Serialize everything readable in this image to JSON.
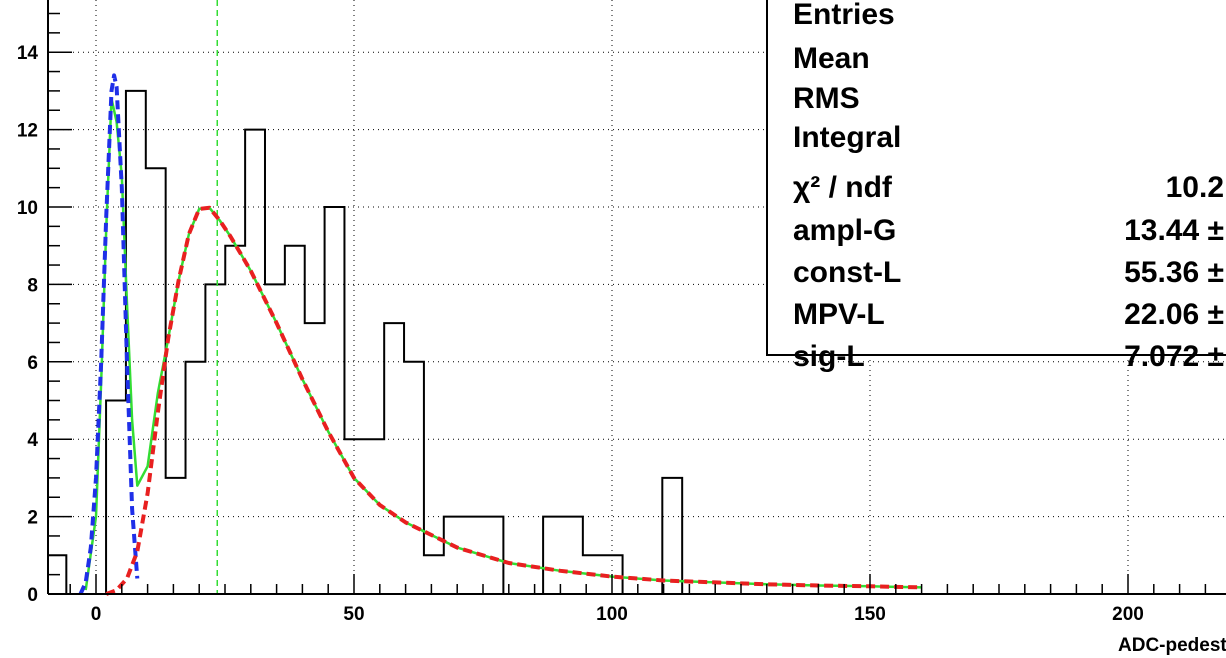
{
  "chart_data": {
    "type": "histogram",
    "title": "",
    "xlabel": "ADC-pedestal",
    "ylabel": "",
    "xlim": [
      -10,
      215
    ],
    "ylim": [
      0,
      15
    ],
    "grid": true,
    "x_ticks": [
      "0",
      "50",
      "100",
      "150",
      "200"
    ],
    "y_ticks": [
      "0",
      "2",
      "4",
      "6",
      "8",
      "10",
      "12",
      "14"
    ],
    "histogram": {
      "bin_width": 3.85,
      "x_start": -9.6,
      "counts": [
        1,
        0,
        0,
        5,
        13,
        11,
        3,
        6,
        8,
        9,
        12,
        8,
        9,
        7,
        10,
        4,
        4,
        7,
        6,
        1,
        2,
        2,
        2,
        0,
        0,
        2,
        2,
        1,
        1,
        0,
        0,
        3,
        0
      ],
      "color": "#000000"
    },
    "curves": [
      {
        "style": "solid",
        "color": "#33dd33",
        "x": [
          -2,
          0,
          1,
          2,
          3,
          4,
          5,
          6,
          7,
          8,
          10,
          12,
          14,
          16,
          18,
          20,
          22,
          24,
          26,
          28,
          30,
          35,
          40,
          45,
          50,
          55,
          60,
          70,
          80,
          90,
          100,
          110,
          120,
          130,
          140,
          150,
          160
        ],
        "y": [
          0.1,
          2.0,
          5.5,
          9.5,
          12.8,
          12.2,
          10.8,
          7.5,
          4.5,
          2.8,
          3.3,
          5.2,
          6.6,
          8.1,
          9.3,
          9.95,
          9.98,
          9.65,
          9.25,
          8.8,
          8.35,
          7.0,
          5.55,
          4.2,
          3.0,
          2.3,
          1.85,
          1.2,
          0.8,
          0.6,
          0.45,
          0.35,
          0.3,
          0.25,
          0.22,
          0.2,
          0.17
        ]
      },
      {
        "style": "dashed",
        "color": "#1f2fe8",
        "x": [
          -3,
          -2,
          -1,
          0,
          1,
          2,
          3,
          3.5,
          4,
          5,
          6,
          7,
          8
        ],
        "y": [
          0,
          0.3,
          1.2,
          3.0,
          6.0,
          9.8,
          13.0,
          13.4,
          13.1,
          10.5,
          6.0,
          2.2,
          0.4
        ]
      },
      {
        "style": "dashed",
        "color": "#e82020",
        "x": [
          2,
          4,
          6,
          8,
          10,
          12,
          14,
          16,
          18,
          20,
          22,
          24,
          26,
          28,
          30,
          35,
          40,
          45,
          50,
          55,
          60,
          70,
          80,
          90,
          100,
          110,
          120,
          130,
          140,
          150,
          160
        ],
        "y": [
          0.0,
          0.1,
          0.4,
          1.1,
          2.6,
          4.7,
          6.6,
          8.1,
          9.3,
          9.95,
          9.98,
          9.65,
          9.25,
          8.8,
          8.35,
          7.0,
          5.55,
          4.2,
          3.0,
          2.3,
          1.85,
          1.2,
          0.8,
          0.6,
          0.45,
          0.35,
          0.3,
          0.25,
          0.22,
          0.2,
          0.17
        ]
      }
    ],
    "vertical_line": {
      "x": 23.5,
      "color": "#33dd33",
      "style": "dashed"
    },
    "stats_box": {
      "rows": [
        {
          "name": "Entries",
          "value": ""
        },
        {
          "name": "Mean",
          "value": ""
        },
        {
          "name": "RMS",
          "value": ""
        },
        {
          "name": "Integral",
          "value": ""
        },
        {
          "name": "χ² / ndf",
          "value": "10.2"
        },
        {
          "name": "ampl-G",
          "value": "13.44 ±"
        },
        {
          "name": "const-L",
          "value": "55.36 ±"
        },
        {
          "name": "MPV-L",
          "value": "22.06 ±"
        },
        {
          "name": "sig-L",
          "value": "7.072 ±"
        }
      ]
    }
  }
}
